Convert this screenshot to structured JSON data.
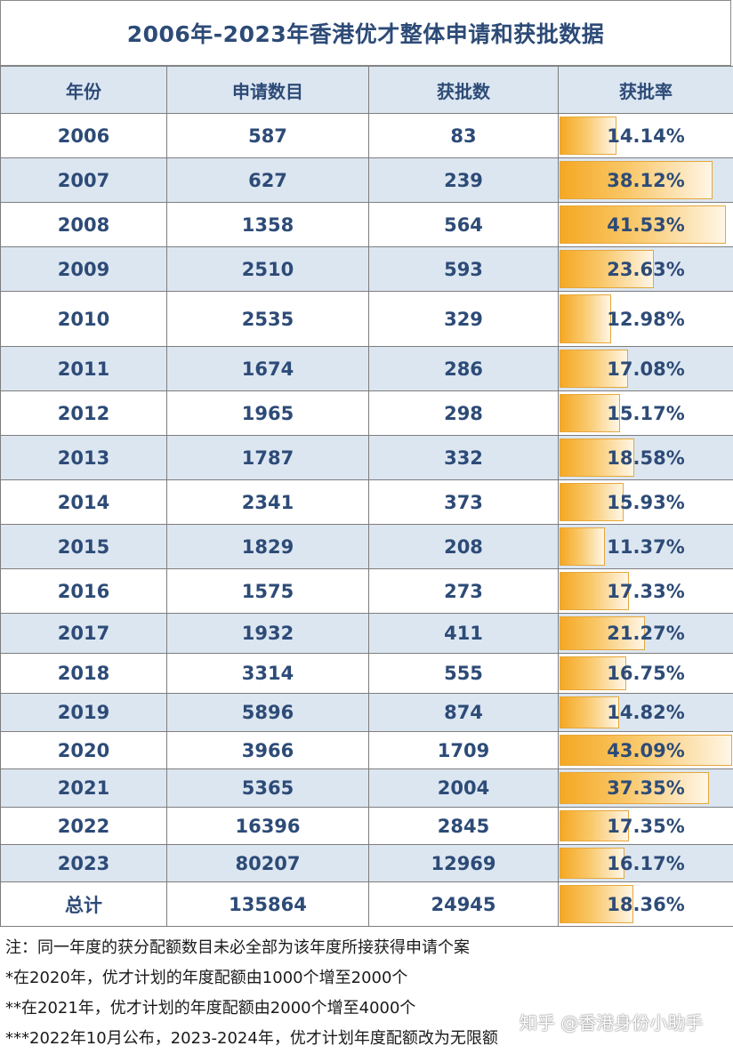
{
  "title": "2006年-2023年香港优才整体申请和获批数据",
  "headers": [
    "年份",
    "申请数目",
    "获批数",
    "获批率"
  ],
  "rows": [
    {
      "year": "2006",
      "applied": "587",
      "approved": "83",
      "rate": "14.14%",
      "rate_value": 14.14
    },
    {
      "year": "2007",
      "applied": "627",
      "approved": "239",
      "rate": "38.12%",
      "rate_value": 38.12
    },
    {
      "year": "2008",
      "applied": "1358",
      "approved": "564",
      "rate": "41.53%",
      "rate_value": 41.53
    },
    {
      "year": "2009",
      "applied": "2510",
      "approved": "593",
      "rate": "23.63%",
      "rate_value": 23.63
    },
    {
      "year": "2010",
      "applied": "2535",
      "approved": "329",
      "rate": "12.98%",
      "rate_value": 12.98
    },
    {
      "year": "2011",
      "applied": "1674",
      "approved": "286",
      "rate": "17.08%",
      "rate_value": 17.08
    },
    {
      "year": "2012",
      "applied": "1965",
      "approved": "298",
      "rate": "15.17%",
      "rate_value": 15.17
    },
    {
      "year": "2013",
      "applied": "1787",
      "approved": "332",
      "rate": "18.58%",
      "rate_value": 18.58
    },
    {
      "year": "2014",
      "applied": "2341",
      "approved": "373",
      "rate": "15.93%",
      "rate_value": 15.93
    },
    {
      "year": "2015",
      "applied": "1829",
      "approved": "208",
      "rate": "11.37%",
      "rate_value": 11.37
    },
    {
      "year": "2016",
      "applied": "1575",
      "approved": "273",
      "rate": "17.33%",
      "rate_value": 17.33
    },
    {
      "year": "2017",
      "applied": "1932",
      "approved": "411",
      "rate": "21.27%",
      "rate_value": 21.27
    },
    {
      "year": "2018",
      "applied": "3314",
      "approved": "555",
      "rate": "16.75%",
      "rate_value": 16.75
    },
    {
      "year": "2019",
      "applied": "5896",
      "approved": "874",
      "rate": "14.82%",
      "rate_value": 14.82
    },
    {
      "year": "2020",
      "applied": "3966",
      "approved": "1709",
      "rate": "43.09%",
      "rate_value": 43.09
    },
    {
      "year": "2021",
      "applied": "5365",
      "approved": "2004",
      "rate": "37.35%",
      "rate_value": 37.35
    },
    {
      "year": "2022",
      "applied": "16396",
      "approved": "2845",
      "rate": "17.35%",
      "rate_value": 17.35
    },
    {
      "year": "2023",
      "applied": "80207",
      "approved": "12969",
      "rate": "16.17%",
      "rate_value": 16.17
    }
  ],
  "total": {
    "label": "总计",
    "applied": "135864",
    "approved": "24945",
    "rate": "18.36%",
    "rate_value": 18.36
  },
  "notes": [
    "注：同一年度的获分配额数目未必全部为该年度所接获得申请个案",
    "*在2020年，优才计划的年度配额由1000个增至2000个",
    "**在2021年，优才计划的年度配额由2000个增至4000个",
    "***2022年10月公布，2023-2024年，优才计划年度配额改为无限额"
  ],
  "watermark": "知乎 @香港身份小助手",
  "colors": {
    "header_bg": "#dce6f1",
    "text": "#2d4b77",
    "bar": "#f5a823"
  }
}
